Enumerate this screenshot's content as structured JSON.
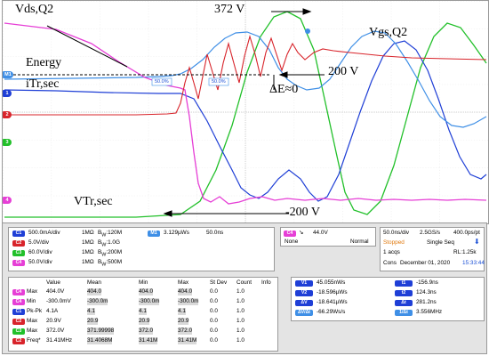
{
  "annotations": {
    "vds": "Vds,Q2",
    "energy": "Energy",
    "itr": "iTr,sec",
    "vtr": "VTr,sec",
    "vgs": "Vgs,Q2",
    "v372": "372 V",
    "v200": "200 V",
    "vneg200": "-200 V",
    "de": "ΔE≈0",
    "cursor_tag": "50.0%"
  },
  "colors": {
    "ch1": "#1f3fd6",
    "ch2": "#d8242b",
    "ch3": "#22c02a",
    "ch4": "#e63fd6",
    "math": "#3f8fe6"
  },
  "channels": [
    {
      "id": "C1",
      "scale": "500.0mA/div",
      "imp": "1MΩ",
      "bw": "120M",
      "color": "#1f3fd6"
    },
    {
      "id": "C2",
      "scale": "5.0V/div",
      "imp": "1MΩ",
      "bw": "1.0G",
      "color": "#d8242b"
    },
    {
      "id": "C3",
      "scale": "60.0V/div",
      "imp": "1MΩ",
      "bw": "200M",
      "color": "#22c02a"
    },
    {
      "id": "C4",
      "scale": "50.0V/div",
      "imp": "1MΩ",
      "bw": "500M",
      "color": "#e63fd6"
    }
  ],
  "math": {
    "id": "M1",
    "scale": "3.129µWs",
    "time": "50.0ns"
  },
  "trigger": {
    "ch": "C4",
    "edge": "↘",
    "level": "44.0V",
    "coupling": "None",
    "mode": "Normal"
  },
  "acq": {
    "timebase": "50.0ns/div",
    "rate": "2.5GS/s",
    "pts": "400.0ps/pt",
    "state": "Stopped",
    "seq": "Single Seq",
    "acqs": "1 acqs",
    "rl": "RL:1.25k",
    "cons": "Cons",
    "date": "December 01, 2020",
    "time": "15:33:44"
  },
  "meas": {
    "headers": [
      "Value",
      "Mean",
      "Min",
      "Max",
      "St Dev",
      "Count",
      "Info"
    ],
    "rows": [
      {
        "ch": "C4",
        "color": "#e63fd6",
        "name": "Max",
        "vals": [
          "404.0V",
          "404.0",
          "404.0",
          "404.0",
          "0.0",
          "1.0",
          ""
        ]
      },
      {
        "ch": "C4",
        "color": "#e63fd6",
        "name": "Min",
        "vals": [
          "-300.0mV",
          "-300.0m",
          "-300.0m",
          "-300.0m",
          "0.0",
          "1.0",
          ""
        ]
      },
      {
        "ch": "C1",
        "color": "#1f3fd6",
        "name": "Pk-Pk",
        "vals": [
          "4.1A",
          "4.1",
          "4.1",
          "4.1",
          "0.0",
          "1.0",
          ""
        ]
      },
      {
        "ch": "C2",
        "color": "#d8242b",
        "name": "Max",
        "vals": [
          "20.9V",
          "20.9",
          "20.9",
          "20.9",
          "0.0",
          "1.0",
          ""
        ]
      },
      {
        "ch": "C3",
        "color": "#22c02a",
        "name": "Max",
        "vals": [
          "372.0V",
          "371.99998",
          "372.0",
          "372.0",
          "0.0",
          "1.0",
          ""
        ]
      },
      {
        "ch": "C2",
        "color": "#d8242b",
        "name": "Freq*",
        "vals": [
          "31.41MHz",
          "31.4068M",
          "31.41M",
          "31.41M",
          "0.0",
          "1.0",
          ""
        ]
      }
    ]
  },
  "cursors": {
    "left": [
      {
        "tag": "V1",
        "val": "45.055nWs"
      },
      {
        "tag": "V2",
        "val": "-18.596µWs"
      },
      {
        "tag": "ΔV",
        "val": "-18.641µWs"
      },
      {
        "tag": "ΔV/Δt",
        "val": "-66.29Ws/s"
      }
    ],
    "right": [
      {
        "tag": "t1",
        "val": "-156.9ns"
      },
      {
        "tag": "t2",
        "val": "124.3ns"
      },
      {
        "tag": "Δt",
        "val": "281.2ns"
      },
      {
        "tag": "1/Δt",
        "val": "3.556MHz"
      }
    ]
  },
  "markers": [
    "M1",
    "1",
    "2",
    "3",
    "4"
  ]
}
